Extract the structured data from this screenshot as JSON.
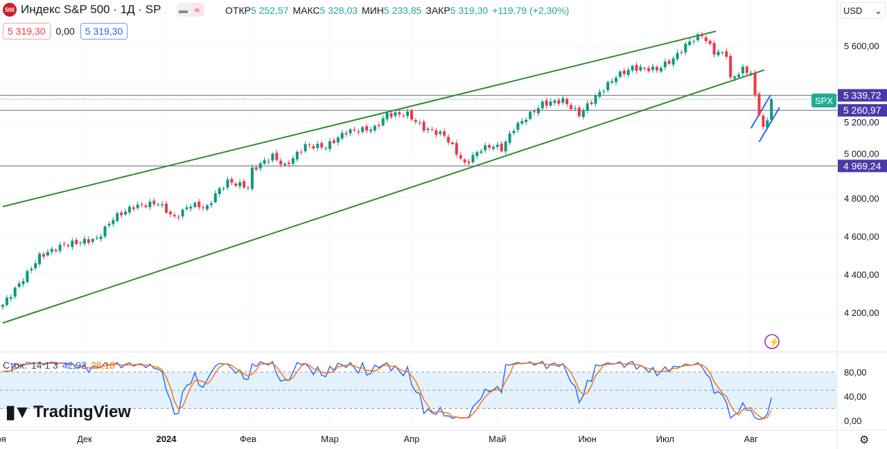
{
  "header": {
    "logo": "500",
    "title": "Индекс S&P 500 · 1Д · SP",
    "open_label": "ОТКР",
    "open": "5 252,57",
    "high_label": "МАКС",
    "high": "5 328,03",
    "low_label": "МИН",
    "low": "5 233,85",
    "close_label": "ЗАКР",
    "close": "5 319,30",
    "change": "+119,79 (+2,30%)",
    "sell": "5 319,30",
    "spread": "0,00",
    "buy": "5 319,30"
  },
  "currency": "USD",
  "symbol_tag": "SPX",
  "indicator": {
    "name": "Стох.",
    "params": "14 1 3",
    "k": "42,92",
    "d": "28,18"
  },
  "brand": "TradingView",
  "colors": {
    "up": "#089981",
    "down": "#F23645",
    "trend": "#2e8b2e",
    "channel": "#2962ff",
    "level": "#4a3aa8",
    "k": "#2962ff",
    "d": "#ff6d00",
    "band": "#e3f2fd"
  },
  "chart_data": {
    "type": "candlestick",
    "price_ticks": [
      "5 600,00",
      "5 200,00",
      "5 000,00",
      "4 800,00",
      "4 600,00",
      "4 400,00",
      "4 200,00"
    ],
    "price_tick_values": [
      5600,
      5200,
      5000,
      4800,
      4600,
      4400,
      4200
    ],
    "stoch_ticks": [
      "80,00",
      "40,00",
      "0,00"
    ],
    "stoch_tick_values": [
      80,
      40,
      0
    ],
    "x_labels": [
      {
        "t": "ноя",
        "i": -1
      },
      {
        "t": "Дек",
        "i": 20
      },
      {
        "t": "2024",
        "i": 40,
        "bold": true
      },
      {
        "t": "Фев",
        "i": 60
      },
      {
        "t": "Мар",
        "i": 80
      },
      {
        "t": "Апр",
        "i": 100
      },
      {
        "t": "Май",
        "i": 121
      },
      {
        "t": "Июн",
        "i": 143
      },
      {
        "t": "Июл",
        "i": 162
      },
      {
        "t": "Авг",
        "i": 183
      }
    ],
    "close_keypoints": [
      [
        0,
        4240
      ],
      [
        6,
        4404
      ],
      [
        9,
        4495
      ],
      [
        15,
        4556
      ],
      [
        23,
        4585
      ],
      [
        27,
        4695
      ],
      [
        32,
        4756
      ],
      [
        38,
        4775
      ],
      [
        42,
        4695
      ],
      [
        46,
        4767
      ],
      [
        50,
        4749
      ],
      [
        52,
        4822
      ],
      [
        55,
        4887
      ],
      [
        60,
        4858
      ],
      [
        61,
        4949
      ],
      [
        66,
        5022
      ],
      [
        69,
        4967
      ],
      [
        74,
        5076
      ],
      [
        79,
        5069
      ],
      [
        84,
        5149
      ],
      [
        91,
        5167
      ],
      [
        94,
        5240
      ],
      [
        99,
        5240
      ],
      [
        103,
        5167
      ],
      [
        108,
        5131
      ],
      [
        113,
        4978
      ],
      [
        117,
        5058
      ],
      [
        120,
        5076
      ],
      [
        122,
        5058
      ],
      [
        125,
        5167
      ],
      [
        132,
        5295
      ],
      [
        137,
        5313
      ],
      [
        141,
        5240
      ],
      [
        145,
        5331
      ],
      [
        150,
        5440
      ],
      [
        154,
        5484
      ],
      [
        160,
        5476
      ],
      [
        164,
        5531
      ],
      [
        168,
        5622
      ],
      [
        171,
        5658
      ],
      [
        174,
        5567
      ],
      [
        177,
        5556
      ],
      [
        178,
        5422
      ],
      [
        181,
        5476
      ],
      [
        183,
        5458
      ],
      [
        184,
        5331
      ],
      [
        186,
        5167
      ],
      [
        187,
        5204
      ],
      [
        188,
        5319.3
      ]
    ],
    "levels": [
      {
        "value": 5339.72,
        "label": "5 339,72"
      },
      {
        "value": 5260.97,
        "label": "5 260,97"
      },
      {
        "value": 4969.24,
        "label": "4 969,24"
      }
    ],
    "last_price": 5319.3,
    "trendlines": [
      [
        [
          0,
          4756
        ],
        [
          174.4,
          5676
        ]
      ],
      [
        [
          0,
          4145
        ],
        [
          186.3,
          5473
        ]
      ]
    ],
    "channel": [
      [
        [
          183,
          5167
        ],
        [
          187.8,
          5342
        ]
      ],
      [
        [
          185,
          5095
        ],
        [
          190,
          5277
        ]
      ]
    ],
    "ylim": [
      4100,
      5720
    ],
    "stoch_ylim": [
      -5,
      110
    ]
  }
}
